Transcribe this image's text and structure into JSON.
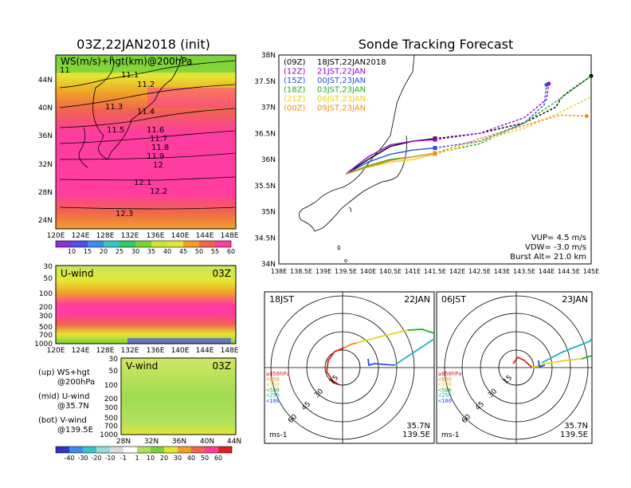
{
  "left_title": "03Z,22JAN2018 (init)",
  "right_title": "Sonde Tracking Forecast",
  "ws_panel": {
    "label": "WS(m/s)+hgt(km)@200hPa",
    "lat_labels": [
      "44N",
      "40N",
      "36N",
      "32N",
      "28N",
      "24N"
    ],
    "lon_labels": [
      "120E",
      "124E",
      "128E",
      "132E",
      "136E",
      "140E",
      "144E",
      "148E"
    ],
    "contour_labels": [
      "11",
      "11.1",
      "11.2",
      "11.3",
      "11.4",
      "11.5",
      "11.6",
      "11.7",
      "11.8",
      "11.9",
      "12",
      "12.1",
      "12.2",
      "12.3"
    ],
    "colorbar_ticks": [
      "10",
      "15",
      "20",
      "25",
      "30",
      "35",
      "40",
      "45",
      "50",
      "55",
      "60"
    ]
  },
  "uwind_panel": {
    "label": "U-wind",
    "time": "03Z",
    "p_labels": [
      "30",
      "50",
      "100",
      "200",
      "300",
      "500",
      "700",
      "1000"
    ],
    "lon_labels": [
      "120E",
      "124E",
      "128E",
      "132E",
      "136E",
      "140E",
      "144E",
      "148E"
    ]
  },
  "vwind_panel": {
    "label": "V-wind",
    "time": "03Z",
    "p_labels": [
      "30",
      "50",
      "100",
      "200",
      "300",
      "500",
      "700",
      "1000"
    ],
    "lat_labels": [
      "28N",
      "32N",
      "36N",
      "40N",
      "44N"
    ],
    "colorbar_ticks": [
      "-40",
      "-30",
      "-20",
      "-10",
      "-1",
      "1",
      "10",
      "20",
      "30",
      "40",
      "50",
      "60"
    ]
  },
  "notes": {
    "up_1": "(up) WS+hgt",
    "up_2": "@200hPa",
    "mid_1": "(mid) U-wind",
    "mid_2": "@35.7N",
    "bot_1": "(bot) V-wind",
    "bot_2": "@139.5E"
  },
  "track_map": {
    "lat_labels": [
      "38N",
      "37.5N",
      "37N",
      "36.5N",
      "36N",
      "35.5N",
      "35N",
      "34.5N",
      "34N"
    ],
    "lon_labels": [
      "138E",
      "138.5E",
      "139E",
      "139.5E",
      "140E",
      "140.5E",
      "141E",
      "141.5E",
      "142E",
      "142.5E",
      "143E",
      "143.5E",
      "144E",
      "144.5E",
      "145E"
    ],
    "legend": [
      {
        "code": "(09Z)",
        "time": "18JST,22JAN2018",
        "color": "#000000"
      },
      {
        "code": "(12Z)",
        "time": "21JST,22JAN",
        "color": "#9b00c8"
      },
      {
        "code": "(15Z)",
        "time": "00JST,23JAN",
        "color": "#2850dc"
      },
      {
        "code": "(18Z)",
        "time": "03JST,23JAN",
        "color": "#20b020"
      },
      {
        "code": "(21Z)",
        "time": "06JST,23JAN",
        "color": "#e6d21e"
      },
      {
        "code": "(00Z)",
        "time": "09JST,23JAN",
        "color": "#f08c1e"
      }
    ],
    "params": {
      "vup": "VUP= 4.5 m/s",
      "vdw": "VDW= -3.0 m/s",
      "burst": "Burst Alt= 21.0 km"
    }
  },
  "hodo_1": {
    "time": "18JST",
    "date": "22JAN",
    "lat": "35.7N",
    "lon": "139.5E",
    "unit": "ms-1"
  },
  "hodo_2": {
    "time": "06JST",
    "date": "23JAN",
    "lat": "35.7N",
    "lon": "139.5E",
    "unit": "ms-1"
  },
  "hodo_rings": [
    "15",
    "30",
    "45",
    "60"
  ],
  "hodo_legend": [
    {
      "text": "≥850hPa",
      "color": "#e02020"
    },
    {
      "text": "<850",
      "color": "#f08c1e"
    },
    {
      "text": "<700",
      "color": "#e6d21e"
    },
    {
      "text": "<500",
      "color": "#20b020"
    },
    {
      "text": "<250",
      "color": "#20b0c8"
    },
    {
      "text": "<100",
      "color": "#2850dc"
    }
  ],
  "chart_data": [
    {
      "type": "line",
      "title": "Sonde Tracking Forecast",
      "xlabel": "",
      "ylabel": "",
      "xlim": [
        138,
        145
      ],
      "ylim": [
        34,
        38
      ],
      "series": [
        {
          "name": "(09Z) 18JST,22JAN2018",
          "x": [
            139.5,
            140.0,
            140.5,
            141.0,
            141.5,
            142.5,
            143.5,
            144.2,
            144.35,
            144.5,
            145.0
          ],
          "y": [
            35.72,
            36.0,
            36.25,
            36.35,
            36.4,
            36.5,
            36.7,
            37.0,
            37.2,
            37.3,
            37.6
          ]
        },
        {
          "name": "(12Z) 21JST,22JAN",
          "x": [
            139.5,
            140.0,
            140.5,
            141.0,
            141.5,
            142.5,
            143.5,
            144.0,
            144.05
          ],
          "y": [
            35.72,
            36.05,
            36.28,
            36.35,
            36.38,
            36.5,
            36.8,
            37.15,
            37.45
          ]
        },
        {
          "name": "(15Z) 00JST,23JAN",
          "x": [
            139.5,
            140.0,
            140.5,
            141.0,
            141.5,
            142.5,
            143.5,
            143.95,
            144.0
          ],
          "y": [
            35.72,
            35.95,
            36.1,
            36.18,
            36.22,
            36.35,
            36.7,
            37.05,
            37.43
          ]
        },
        {
          "name": "(18Z) 03JST,23JAN",
          "x": [
            139.5,
            140.0,
            140.5,
            141.0,
            141.5,
            142.5,
            143.5,
            144.2,
            145.0
          ],
          "y": [
            35.72,
            35.88,
            36.0,
            36.05,
            36.12,
            36.3,
            36.7,
            37.1,
            37.6
          ]
        },
        {
          "name": "(21Z) 06JST,23JAN",
          "x": [
            139.5,
            140.0,
            140.5,
            141.0,
            141.5,
            142.5,
            143.5,
            144.3,
            145.0
          ],
          "y": [
            35.72,
            35.85,
            35.95,
            36.0,
            36.1,
            36.35,
            36.6,
            36.9,
            37.2
          ]
        },
        {
          "name": "(00Z) 09JST,23JAN",
          "x": [
            139.5,
            140.0,
            140.5,
            141.0,
            141.5,
            142.5,
            143.5,
            144.3,
            144.9
          ],
          "y": [
            35.72,
            35.86,
            35.98,
            36.05,
            36.12,
            36.4,
            36.65,
            36.85,
            36.83
          ]
        }
      ]
    }
  ]
}
